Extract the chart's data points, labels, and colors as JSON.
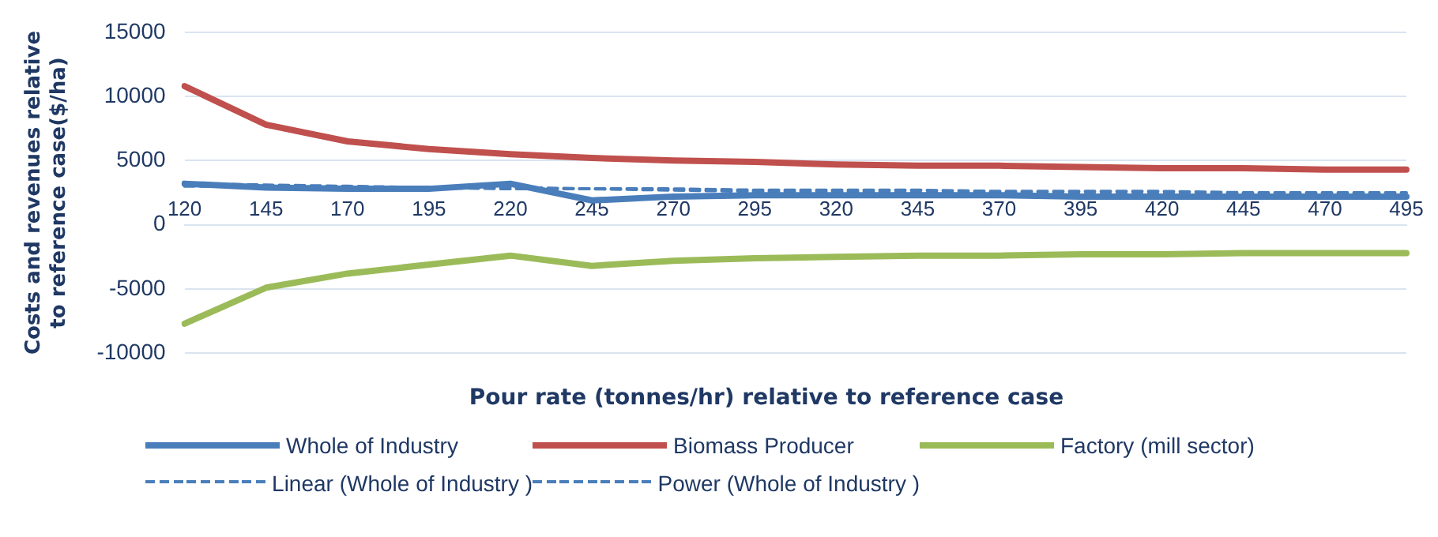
{
  "chart_data": {
    "type": "line",
    "xlabel": "Pour rate (tonnes/hr) relative to reference case",
    "ylabel": "Costs and revenues relative to reference case($/ha)",
    "categories": [
      "120",
      "145",
      "170",
      "195",
      "220",
      "245",
      "270",
      "295",
      "320",
      "345",
      "370",
      "395",
      "420",
      "445",
      "470",
      "495"
    ],
    "series": [
      {
        "name": "Whole of Industry",
        "color": "#4a7ebb",
        "values": [
          3200,
          2900,
          2800,
          2800,
          3200,
          1900,
          2200,
          2300,
          2300,
          2300,
          2300,
          2200,
          2200,
          2200,
          2200,
          2200
        ]
      },
      {
        "name": "Biomass Producer",
        "color": "#c0504d",
        "values": [
          10800,
          7800,
          6500,
          5900,
          5500,
          5200,
          5000,
          4900,
          4700,
          4600,
          4600,
          4500,
          4400,
          4400,
          4300,
          4300
        ]
      },
      {
        "name": "Factory (mill sector)",
        "color": "#9bbb59",
        "values": [
          -7700,
          -4900,
          -3800,
          -3100,
          -2400,
          -3200,
          -2800,
          -2600,
          -2500,
          -2400,
          -2400,
          -2300,
          -2300,
          -2200,
          -2200,
          -2200
        ]
      },
      {
        "name": "Linear (Whole of Industry )",
        "color": "#4a7ebb",
        "line_style": "dashed",
        "values": [
          3000,
          3000,
          2900,
          2900,
          2800,
          2800,
          2700,
          2600,
          2600,
          2500,
          2500,
          2400,
          2400,
          2300,
          2300,
          2200
        ]
      },
      {
        "name": "Power (Whole of Industry )",
        "color": "#4a7ebb",
        "line_style": "dashed",
        "values": [
          3200,
          3100,
          3000,
          2900,
          2900,
          2800,
          2800,
          2700,
          2700,
          2700,
          2600,
          2600,
          2600,
          2500,
          2500,
          2500
        ]
      }
    ],
    "ylim": [
      -10000,
      15000
    ],
    "yticks": [
      -10000,
      -5000,
      0,
      5000,
      10000,
      15000
    ],
    "grid": "y",
    "legend": "bottom",
    "line_style": "solid",
    "marker": "none"
  }
}
